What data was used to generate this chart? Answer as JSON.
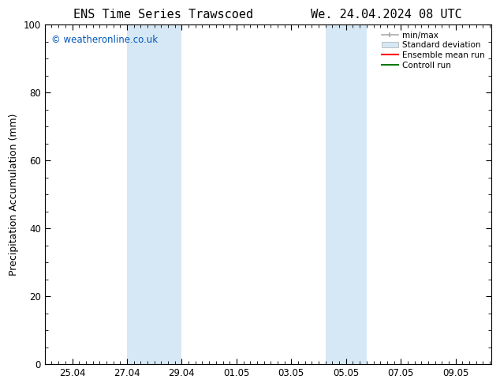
{
  "title": "ENS Time Series Trawscoed        We. 24.04.2024 08 UTC",
  "ylabel": "Precipitation Accumulation (mm)",
  "ylim": [
    0,
    100
  ],
  "yticks": [
    0,
    20,
    40,
    60,
    80,
    100
  ],
  "background_color": "#ffffff",
  "watermark_text": "© weatheronline.co.uk",
  "watermark_color": "#0055bb",
  "legend_labels": [
    "min/max",
    "Standard deviation",
    "Ensemble mean run",
    "Controll run"
  ],
  "legend_colors": [
    "#aaaaaa",
    "#ccdded",
    "#ff0000",
    "#007700"
  ],
  "shaded_band_color": "#d6e8f5",
  "title_fontsize": 11,
  "axis_fontsize": 9,
  "tick_fontsize": 8.5,
  "x_tick_labels": [
    "25.04",
    "27.04",
    "29.04",
    "01.05",
    "03.05",
    "05.05",
    "07.05",
    "09.05"
  ],
  "x_tick_positions": [
    1,
    3,
    5,
    7,
    9,
    11,
    13,
    15
  ],
  "xlim": [
    0.0,
    16.3
  ],
  "shade1_x0": 3.0,
  "shade1_x1": 5.0,
  "shade2_x0": 10.25,
  "shade2_x1": 11.75
}
